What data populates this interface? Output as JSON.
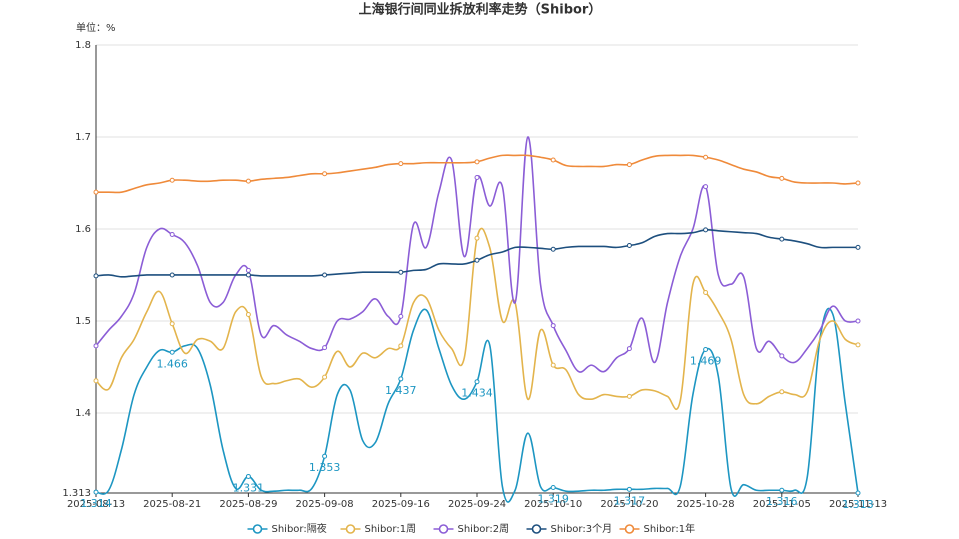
{
  "chart_data": {
    "type": "line",
    "title": "上海银行间同业拆放利率走势（Shibor）",
    "y_axis_label": "单位：%",
    "categories": [
      "2025-08-13",
      null,
      null,
      null,
      null,
      null,
      "2025-08-21",
      null,
      null,
      null,
      null,
      null,
      "2025-08-29",
      null,
      null,
      null,
      null,
      null,
      "2025-09-08",
      null,
      null,
      null,
      null,
      null,
      "2025-09-16",
      null,
      null,
      null,
      null,
      null,
      "2025-09-24",
      null,
      null,
      null,
      null,
      null,
      "2025-10-10",
      null,
      null,
      null,
      null,
      null,
      "2025-10-20",
      null,
      null,
      null,
      null,
      null,
      "2025-10-28",
      null,
      null,
      null,
      null,
      null,
      "2025-11-05",
      null,
      null,
      null,
      null,
      null,
      "2025-11-13"
    ],
    "ylim": [
      1.313,
      1.8
    ],
    "yticks": [
      1.313,
      1.4,
      1.5,
      1.6,
      1.7,
      1.8
    ],
    "grid": true,
    "legend": "bottom",
    "series": [
      {
        "name": "Shibor:隔夜",
        "color": "#1d96c2",
        "values": [
          1.314,
          1.316,
          1.36,
          1.42,
          1.45,
          1.468,
          1.466,
          1.473,
          1.47,
          1.43,
          1.36,
          1.318,
          1.331,
          1.316,
          1.315,
          1.316,
          1.316,
          1.318,
          1.353,
          1.42,
          1.425,
          1.37,
          1.368,
          1.41,
          1.437,
          1.49,
          1.512,
          1.47,
          1.43,
          1.415,
          1.434,
          1.474,
          1.32,
          1.316,
          1.378,
          1.32,
          1.319,
          1.315,
          1.315,
          1.316,
          1.316,
          1.317,
          1.317,
          1.317,
          1.318,
          1.318,
          1.32,
          1.42,
          1.469,
          1.44,
          1.318,
          1.322,
          1.316,
          1.316,
          1.316,
          1.316,
          1.33,
          1.48,
          1.508,
          1.41,
          1.313
        ]
      },
      {
        "name": "Shibor:1周",
        "color": "#e3b44c",
        "values": [
          1.435,
          1.426,
          1.46,
          1.48,
          1.51,
          1.532,
          1.497,
          1.465,
          1.48,
          1.478,
          1.47,
          1.51,
          1.507,
          1.44,
          1.432,
          1.435,
          1.437,
          1.428,
          1.439,
          1.467,
          1.45,
          1.465,
          1.46,
          1.47,
          1.473,
          1.52,
          1.525,
          1.49,
          1.47,
          1.46,
          1.59,
          1.58,
          1.5,
          1.52,
          1.415,
          1.49,
          1.452,
          1.447,
          1.42,
          1.415,
          1.42,
          1.418,
          1.418,
          1.425,
          1.424,
          1.418,
          1.413,
          1.54,
          1.531,
          1.51,
          1.48,
          1.42,
          1.41,
          1.418,
          1.423,
          1.42,
          1.423,
          1.48,
          1.5,
          1.48,
          1.474
        ]
      },
      {
        "name": "Shibor:2周",
        "color": "#8b5dd6",
        "values": [
          1.473,
          1.49,
          1.505,
          1.53,
          1.58,
          1.6,
          1.594,
          1.585,
          1.56,
          1.52,
          1.52,
          1.55,
          1.555,
          1.485,
          1.495,
          1.485,
          1.478,
          1.47,
          1.471,
          1.5,
          1.502,
          1.51,
          1.524,
          1.505,
          1.505,
          1.605,
          1.58,
          1.64,
          1.675,
          1.57,
          1.656,
          1.625,
          1.646,
          1.52,
          1.7,
          1.54,
          1.495,
          1.468,
          1.445,
          1.452,
          1.445,
          1.46,
          1.47,
          1.503,
          1.455,
          1.52,
          1.57,
          1.6,
          1.646,
          1.55,
          1.54,
          1.548,
          1.47,
          1.478,
          1.462,
          1.455,
          1.47,
          1.49,
          1.516,
          1.5,
          1.5
        ]
      },
      {
        "name": "Shibor:3个月",
        "color": "#1d4f7e",
        "values": [
          1.549,
          1.55,
          1.548,
          1.549,
          1.55,
          1.55,
          1.55,
          1.55,
          1.55,
          1.55,
          1.55,
          1.55,
          1.55,
          1.549,
          1.549,
          1.549,
          1.549,
          1.549,
          1.55,
          1.551,
          1.552,
          1.553,
          1.553,
          1.553,
          1.553,
          1.555,
          1.556,
          1.562,
          1.562,
          1.562,
          1.566,
          1.572,
          1.575,
          1.58,
          1.58,
          1.579,
          1.578,
          1.58,
          1.581,
          1.581,
          1.581,
          1.58,
          1.582,
          1.585,
          1.592,
          1.595,
          1.595,
          1.596,
          1.599,
          1.598,
          1.597,
          1.596,
          1.595,
          1.591,
          1.589,
          1.587,
          1.584,
          1.58,
          1.58,
          1.58,
          1.58
        ]
      },
      {
        "name": "Shibor:1年",
        "color": "#ef8a3a",
        "values": [
          1.64,
          1.64,
          1.64,
          1.644,
          1.648,
          1.65,
          1.653,
          1.653,
          1.652,
          1.652,
          1.653,
          1.653,
          1.652,
          1.654,
          1.655,
          1.656,
          1.658,
          1.66,
          1.66,
          1.661,
          1.663,
          1.665,
          1.667,
          1.67,
          1.671,
          1.671,
          1.672,
          1.672,
          1.672,
          1.672,
          1.673,
          1.677,
          1.68,
          1.68,
          1.68,
          1.678,
          1.675,
          1.669,
          1.668,
          1.668,
          1.668,
          1.67,
          1.67,
          1.675,
          1.679,
          1.68,
          1.68,
          1.68,
          1.678,
          1.675,
          1.67,
          1.665,
          1.662,
          1.657,
          1.655,
          1.651,
          1.65,
          1.65,
          1.65,
          1.649,
          1.65
        ]
      }
    ]
  }
}
